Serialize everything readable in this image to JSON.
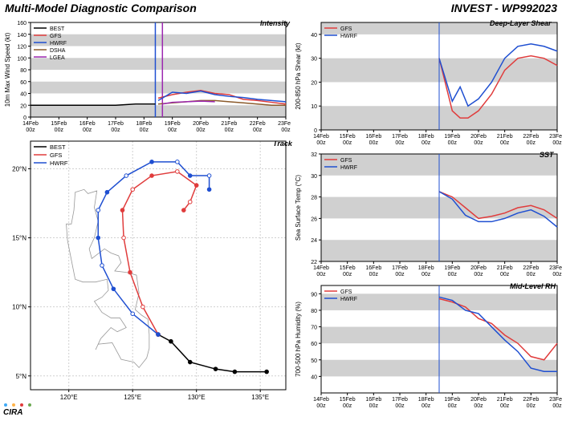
{
  "main_title": "Multi-Model Diagnostic Comparison",
  "invest_title": "INVEST - WP992023",
  "logo_text": "CIRA",
  "logo_colors": {
    "c": "#3fa9f5",
    "i": "#ffb347",
    "r": "#e03c3c",
    "a": "#6aa84f"
  },
  "background_color": "#ffffff",
  "band_color": "#d0d0d0",
  "grid_color": "#d0d0d0",
  "xaxis": {
    "labels": [
      "14Feb\n00z",
      "15Feb\n00z",
      "16Feb\n00z",
      "17Feb\n00z",
      "18Feb\n00z",
      "19Feb\n00z",
      "20Feb\n00z",
      "21Feb\n00z",
      "22Feb\n00z",
      "23Feb\n00z"
    ],
    "ticks": [
      0,
      1,
      2,
      3,
      4,
      5,
      6,
      7,
      8,
      9
    ],
    "fontsize": 7
  },
  "vline_x": 4.5,
  "intensity_panel": {
    "title": "Intensity",
    "ylabel": "10m Max Wind Speed (kt)",
    "ylim": [
      0,
      160
    ],
    "ytick_step": 20,
    "band_width": 20,
    "vlines": [
      {
        "x": 4.4,
        "color": "#1f4fd1"
      },
      {
        "x": 4.65,
        "color": "#9c27b0"
      }
    ],
    "legend": [
      {
        "label": "BEST",
        "color": "#000000"
      },
      {
        "label": "GFS",
        "color": "#e03c3c"
      },
      {
        "label": "HWRF",
        "color": "#1f4fd1"
      },
      {
        "label": "DSHA",
        "color": "#8b5a2b"
      },
      {
        "label": "LGEA",
        "color": "#9c27b0"
      }
    ],
    "series": {
      "BEST": {
        "color": "#000000",
        "x": [
          0,
          1,
          2,
          3,
          3.7,
          4.4
        ],
        "y": [
          20,
          20,
          20,
          20,
          22,
          22
        ]
      },
      "GFS": {
        "color": "#e03c3c",
        "x": [
          4.5,
          5,
          5.5,
          6,
          6.5,
          7,
          7.5,
          8,
          8.5,
          9
        ],
        "y": [
          32,
          38,
          42,
          45,
          40,
          38,
          30,
          28,
          25,
          22
        ]
      },
      "HWRF": {
        "color": "#1f4fd1",
        "x": [
          4.5,
          5,
          5.5,
          6,
          6.5,
          7,
          7.5,
          8,
          8.5,
          9
        ],
        "y": [
          28,
          42,
          40,
          44,
          38,
          35,
          33,
          30,
          28,
          26
        ]
      },
      "DSHA": {
        "color": "#8b5a2b",
        "x": [
          4.5,
          5,
          5.5,
          6,
          6.5,
          7,
          7.5,
          8,
          8.5,
          9
        ],
        "y": [
          22,
          24,
          26,
          28,
          28,
          26,
          24,
          22,
          20,
          20
        ]
      },
      "LGEA": {
        "color": "#9c27b0",
        "x": [
          4.65,
          5,
          5.5,
          6,
          6.5
        ],
        "y": [
          22,
          25,
          26,
          27,
          26
        ]
      }
    }
  },
  "track_panel": {
    "title": "Track",
    "xlim": [
      117,
      137
    ],
    "ylim": [
      4,
      22
    ],
    "xticks": [
      120,
      125,
      130,
      135
    ],
    "yticks": [
      5,
      10,
      15,
      20
    ],
    "xtick_labels": [
      "120°E",
      "125°E",
      "130°E",
      "135°E"
    ],
    "ytick_labels": [
      "5°N",
      "10°N",
      "15°N",
      "20°N"
    ],
    "legend": [
      {
        "label": "BEST",
        "color": "#000000"
      },
      {
        "label": "GFS",
        "color": "#e03c3c"
      },
      {
        "label": "HWRF",
        "color": "#1f4fd1"
      }
    ],
    "land": [
      [
        [
          120.5,
          18.3
        ],
        [
          121.2,
          18.5
        ],
        [
          121.5,
          18.2
        ],
        [
          122.2,
          18.4
        ],
        [
          122.0,
          17.2
        ],
        [
          122.3,
          16.2
        ],
        [
          122.0,
          15.0
        ],
        [
          121.6,
          14.2
        ],
        [
          121.8,
          13.5
        ],
        [
          122.8,
          14.2
        ],
        [
          123.3,
          13.9
        ],
        [
          123.9,
          13.7
        ],
        [
          124.1,
          13.2
        ],
        [
          123.6,
          12.6
        ],
        [
          124.5,
          12.5
        ],
        [
          125.3,
          12.3
        ],
        [
          125.5,
          11.0
        ],
        [
          125.2,
          9.8
        ],
        [
          125.7,
          9.4
        ],
        [
          126.2,
          9.1
        ],
        [
          126.3,
          8.0
        ],
        [
          126.3,
          7.0
        ],
        [
          126.1,
          6.3
        ],
        [
          125.5,
          5.6
        ],
        [
          125.1,
          6.0
        ],
        [
          124.1,
          6.2
        ],
        [
          123.4,
          7.4
        ],
        [
          122.3,
          7.3
        ],
        [
          122.1,
          6.9
        ],
        [
          122.5,
          7.7
        ],
        [
          123.3,
          8.5
        ],
        [
          123.8,
          8.2
        ],
        [
          124.5,
          8.5
        ],
        [
          124.0,
          9.2
        ],
        [
          123.3,
          9.2
        ],
        [
          122.6,
          9.6
        ],
        [
          122.0,
          10.4
        ],
        [
          122.6,
          10.7
        ],
        [
          123.1,
          11.2
        ],
        [
          123.0,
          12.0
        ],
        [
          122.1,
          11.8
        ],
        [
          121.1,
          11.8
        ],
        [
          120.5,
          12.0
        ],
        [
          120.2,
          13.4
        ],
        [
          119.9,
          14.8
        ],
        [
          119.8,
          16.0
        ],
        [
          120.2,
          16.0
        ],
        [
          120.4,
          17.0
        ],
        [
          120.5,
          18.3
        ]
      ]
    ],
    "series": {
      "BEST": {
        "color": "#000000",
        "points": [
          [
            135.5,
            5.3
          ],
          [
            133.0,
            5.3
          ],
          [
            131.5,
            5.5
          ],
          [
            129.5,
            6.0
          ],
          [
            128.0,
            7.5
          ],
          [
            127.0,
            8.0
          ]
        ],
        "marker": "filled"
      },
      "GFS": {
        "color": "#e03c3c",
        "points": [
          [
            127.0,
            8.0
          ],
          [
            125.8,
            10.0
          ],
          [
            124.8,
            12.5
          ],
          [
            124.3,
            15.0
          ],
          [
            124.2,
            17.0
          ],
          [
            125.0,
            18.5
          ],
          [
            126.5,
            19.5
          ],
          [
            128.5,
            19.8
          ],
          [
            130.0,
            18.8
          ],
          [
            129.5,
            17.6
          ],
          [
            129.0,
            17.0
          ]
        ],
        "marker": "mixed"
      },
      "HWRF": {
        "color": "#1f4fd1",
        "points": [
          [
            127.0,
            8.0
          ],
          [
            125.0,
            9.5
          ],
          [
            123.5,
            11.3
          ],
          [
            122.6,
            13.0
          ],
          [
            122.3,
            15.0
          ],
          [
            122.3,
            17.0
          ],
          [
            123.0,
            18.3
          ],
          [
            124.5,
            19.5
          ],
          [
            126.5,
            20.5
          ],
          [
            128.5,
            20.5
          ],
          [
            129.5,
            19.5
          ],
          [
            131.0,
            19.5
          ],
          [
            131.0,
            18.5
          ]
        ],
        "marker": "mixed"
      }
    }
  },
  "shear_panel": {
    "title": "Deep-Layer Shear",
    "ylabel": "200-850 hPa Shear (kt)",
    "ylim": [
      0,
      45
    ],
    "ytick_step": 10,
    "band_ranges": [
      [
        0,
        10
      ],
      [
        20,
        30
      ],
      [
        40,
        45
      ]
    ],
    "legend": [
      {
        "label": "GFS",
        "color": "#e03c3c"
      },
      {
        "label": "HWRF",
        "color": "#1f4fd1"
      }
    ],
    "series": {
      "GFS": {
        "color": "#e03c3c",
        "x": [
          4.5,
          5,
          5.3,
          5.6,
          6,
          6.5,
          7,
          7.5,
          8,
          8.5,
          9
        ],
        "y": [
          30,
          8,
          5,
          5,
          8,
          15,
          25,
          30,
          31,
          30,
          27
        ]
      },
      "HWRF": {
        "color": "#1f4fd1",
        "x": [
          4.5,
          5,
          5.3,
          5.6,
          6,
          6.5,
          7,
          7.5,
          8,
          8.5,
          9
        ],
        "y": [
          30,
          12,
          18,
          10,
          13,
          20,
          30,
          35,
          36,
          35,
          33
        ]
      }
    }
  },
  "sst_panel": {
    "title": "SST",
    "ylabel": "Sea Surface Temp (°C)",
    "ylim": [
      22,
      32
    ],
    "ytick_step": 2,
    "band_ranges": [
      [
        22,
        24
      ],
      [
        26,
        28
      ],
      [
        30,
        32
      ]
    ],
    "legend": [
      {
        "label": "GFS",
        "color": "#e03c3c"
      },
      {
        "label": "HWRF",
        "color": "#1f4fd1"
      }
    ],
    "series": {
      "GFS": {
        "color": "#e03c3c",
        "x": [
          4.5,
          5,
          5.5,
          6,
          6.5,
          7,
          7.5,
          8,
          8.5,
          9
        ],
        "y": [
          28.5,
          28.0,
          27.0,
          26.0,
          26.2,
          26.5,
          27.0,
          27.2,
          26.8,
          26.0
        ]
      },
      "HWRF": {
        "color": "#1f4fd1",
        "x": [
          4.5,
          5,
          5.5,
          6,
          6.5,
          7,
          7.5,
          8,
          8.5,
          9
        ],
        "y": [
          28.5,
          27.8,
          26.3,
          25.7,
          25.7,
          26.0,
          26.5,
          26.8,
          26.2,
          25.2
        ]
      }
    }
  },
  "rh_panel": {
    "title": "Mid-Level RH",
    "ylabel": "700-500 hPa Humidity (%)",
    "ylim": [
      30,
      95
    ],
    "ytick_positions": [
      40,
      50,
      60,
      70,
      80,
      90
    ],
    "band_ranges": [
      [
        40,
        50
      ],
      [
        60,
        70
      ],
      [
        80,
        90
      ]
    ],
    "legend": [
      {
        "label": "GFS",
        "color": "#e03c3c"
      },
      {
        "label": "HWRF",
        "color": "#1f4fd1"
      }
    ],
    "series": {
      "GFS": {
        "color": "#e03c3c",
        "x": [
          4.5,
          5,
          5.5,
          6,
          6.5,
          7,
          7.5,
          8,
          8.5,
          9
        ],
        "y": [
          87,
          85,
          82,
          75,
          72,
          65,
          60,
          52,
          50,
          60
        ]
      },
      "HWRF": {
        "color": "#1f4fd1",
        "x": [
          4.5,
          5,
          5.5,
          6,
          6.5,
          7,
          7.5,
          8,
          8.5,
          9
        ],
        "y": [
          88,
          86,
          80,
          78,
          70,
          62,
          55,
          45,
          43,
          43
        ]
      }
    }
  }
}
